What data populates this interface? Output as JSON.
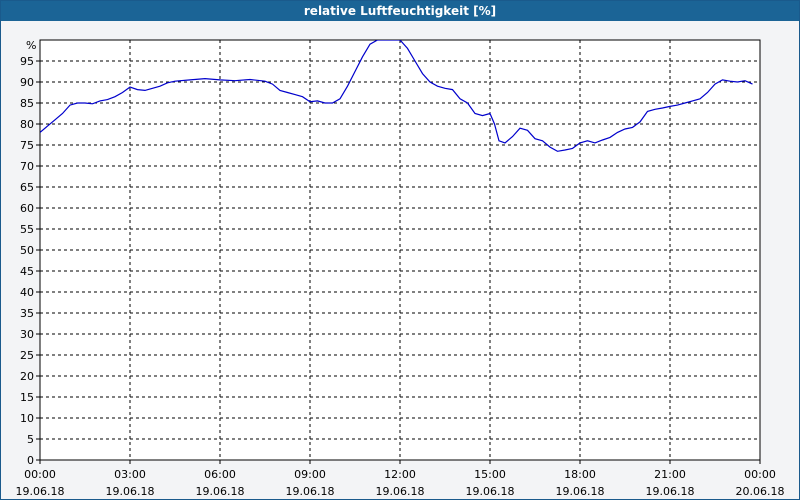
{
  "window": {
    "title": "relative Luftfeuchtigkeit [%]"
  },
  "chart_data": {
    "type": "line",
    "title": "relative Luftfeuchtigkeit [%]",
    "ylabel": "%",
    "ylim": [
      0,
      100
    ],
    "y_ticks": [
      0,
      5,
      10,
      15,
      20,
      25,
      30,
      35,
      40,
      45,
      50,
      55,
      60,
      65,
      70,
      75,
      80,
      85,
      90,
      95
    ],
    "xlim": [
      0,
      24
    ],
    "x_ticks": [
      {
        "hour": 0,
        "time": "00:00",
        "date": "19.06.18"
      },
      {
        "hour": 3,
        "time": "03:00",
        "date": "19.06.18"
      },
      {
        "hour": 6,
        "time": "06:00",
        "date": "19.06.18"
      },
      {
        "hour": 9,
        "time": "09:00",
        "date": "19.06.18"
      },
      {
        "hour": 12,
        "time": "12:00",
        "date": "19.06.18"
      },
      {
        "hour": 15,
        "time": "15:00",
        "date": "19.06.18"
      },
      {
        "hour": 18,
        "time": "18:00",
        "date": "19.06.18"
      },
      {
        "hour": 21,
        "time": "21:00",
        "date": "19.06.18"
      },
      {
        "hour": 24,
        "time": "00:00",
        "date": "20.06.18"
      }
    ],
    "grid": true,
    "line_color": "#0000cc",
    "series": [
      {
        "points": [
          [
            0.0,
            78
          ],
          [
            0.25,
            79.5
          ],
          [
            0.5,
            81
          ],
          [
            0.75,
            82.5
          ],
          [
            1.0,
            84.5
          ],
          [
            1.25,
            85
          ],
          [
            1.5,
            85
          ],
          [
            1.75,
            84.8
          ],
          [
            2.0,
            85.5
          ],
          [
            2.25,
            85.8
          ],
          [
            2.5,
            86.5
          ],
          [
            2.75,
            87.5
          ],
          [
            3.0,
            88.8
          ],
          [
            3.25,
            88.2
          ],
          [
            3.5,
            88
          ],
          [
            3.75,
            88.5
          ],
          [
            4.0,
            89
          ],
          [
            4.25,
            89.8
          ],
          [
            4.5,
            90.2
          ],
          [
            5.0,
            90.5
          ],
          [
            5.5,
            90.8
          ],
          [
            6.0,
            90.5
          ],
          [
            6.5,
            90.3
          ],
          [
            7.0,
            90.6
          ],
          [
            7.5,
            90.2
          ],
          [
            7.75,
            89.5
          ],
          [
            8.0,
            88
          ],
          [
            8.25,
            87.5
          ],
          [
            8.5,
            87
          ],
          [
            8.75,
            86.5
          ],
          [
            9.0,
            85.3
          ],
          [
            9.25,
            85.5
          ],
          [
            9.5,
            85
          ],
          [
            9.75,
            85
          ],
          [
            10.0,
            86
          ],
          [
            10.25,
            89
          ],
          [
            10.5,
            92.5
          ],
          [
            10.75,
            96
          ],
          [
            11.0,
            99
          ],
          [
            11.25,
            100
          ],
          [
            11.5,
            100
          ],
          [
            11.75,
            100
          ],
          [
            12.0,
            100
          ],
          [
            12.25,
            98
          ],
          [
            12.5,
            95
          ],
          [
            12.75,
            92
          ],
          [
            13.0,
            90
          ],
          [
            13.25,
            89
          ],
          [
            13.5,
            88.5
          ],
          [
            13.75,
            88.2
          ],
          [
            14.0,
            86
          ],
          [
            14.25,
            85
          ],
          [
            14.5,
            82.5
          ],
          [
            14.75,
            82
          ],
          [
            15.0,
            82.5
          ],
          [
            15.15,
            80
          ],
          [
            15.3,
            76
          ],
          [
            15.5,
            75.5
          ],
          [
            15.75,
            77
          ],
          [
            16.0,
            79
          ],
          [
            16.25,
            78.5
          ],
          [
            16.5,
            76.5
          ],
          [
            16.75,
            76
          ],
          [
            17.0,
            74.5
          ],
          [
            17.25,
            73.5
          ],
          [
            17.5,
            73.8
          ],
          [
            17.75,
            74.2
          ],
          [
            18.0,
            75.5
          ],
          [
            18.25,
            76
          ],
          [
            18.5,
            75.5
          ],
          [
            18.75,
            76.2
          ],
          [
            19.0,
            76.8
          ],
          [
            19.25,
            78
          ],
          [
            19.5,
            78.8
          ],
          [
            19.75,
            79.2
          ],
          [
            20.0,
            80.5
          ],
          [
            20.25,
            83
          ],
          [
            20.5,
            83.5
          ],
          [
            20.75,
            83.8
          ],
          [
            21.0,
            84.2
          ],
          [
            21.25,
            84.5
          ],
          [
            21.5,
            85
          ],
          [
            21.75,
            85.5
          ],
          [
            22.0,
            86
          ],
          [
            22.25,
            87.5
          ],
          [
            22.5,
            89.5
          ],
          [
            22.75,
            90.5
          ],
          [
            23.0,
            90.2
          ],
          [
            23.25,
            90
          ],
          [
            23.5,
            90.3
          ],
          [
            23.75,
            89.5
          ]
        ]
      }
    ]
  }
}
